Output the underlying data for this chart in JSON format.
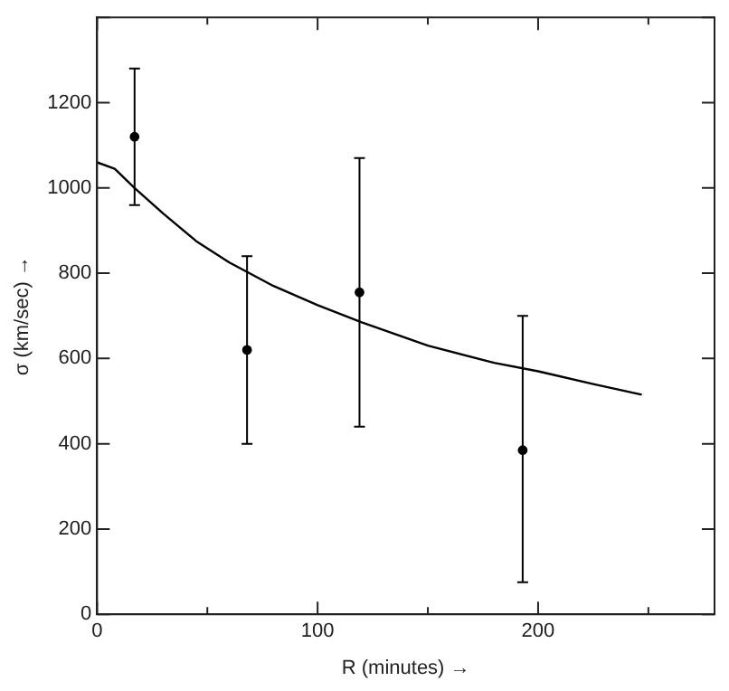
{
  "chart_data": {
    "type": "scatter",
    "xlabel": "R (minutes) →",
    "ylabel": "σ (km/sec) →",
    "xlim": [
      0,
      280
    ],
    "xticks": [
      0,
      {
        "value": 50,
        "label": null
      },
      100,
      {
        "value": 150,
        "label": null
      },
      200,
      {
        "value": 250,
        "label": null
      }
    ],
    "ylim": [
      0,
      1400
    ],
    "yticks": [
      0,
      200,
      400,
      600,
      800,
      1000,
      1200,
      {
        "value": 1400,
        "label": null
      }
    ],
    "grid": false,
    "legend": false,
    "marker": "circle",
    "series": [
      {
        "type": "scatter",
        "color": "#000000",
        "x": [
          17,
          68,
          119,
          193
        ],
        "values": [
          1120,
          620,
          755,
          385
        ],
        "errors": [
          [
            960,
            1280
          ],
          [
            400,
            840
          ],
          [
            440,
            1070
          ],
          [
            75,
            700
          ]
        ]
      },
      {
        "type": "line",
        "color": "#000000",
        "marker": "none",
        "line_style": "solid",
        "x": [
          0,
          8,
          17,
          30,
          45,
          60,
          80,
          100,
          120,
          150,
          180,
          200,
          225,
          247
        ],
        "values": [
          1060,
          1045,
          1000,
          940,
          875,
          825,
          770,
          725,
          685,
          630,
          590,
          570,
          540,
          515
        ]
      }
    ]
  }
}
